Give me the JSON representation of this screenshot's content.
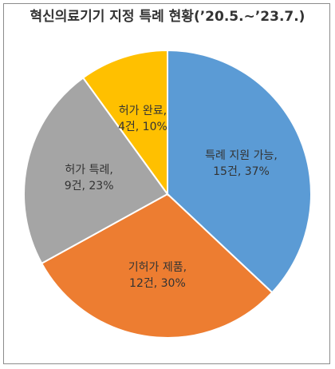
{
  "chart_data": {
    "type": "pie",
    "title": "혁신의료기기 지정 특례 현황(’20.5.~’23.7.)",
    "start_angle_deg": 0,
    "direction": "clockwise",
    "slices": [
      {
        "name": "특례 지원 가능",
        "count_label": "15건",
        "percent_label": "37%",
        "value": 37,
        "color": "#5B9BD5"
      },
      {
        "name": "기허가 제품",
        "count_label": "12건",
        "percent_label": "30%",
        "value": 30,
        "color": "#ED7D31"
      },
      {
        "name": "허가 특례",
        "count_label": "9건",
        "percent_label": "23%",
        "value": 23,
        "color": "#A5A5A5"
      },
      {
        "name": "허가 완료",
        "count_label": "4건",
        "percent_label": "10%",
        "value": 10,
        "color": "#FFC000"
      }
    ]
  }
}
